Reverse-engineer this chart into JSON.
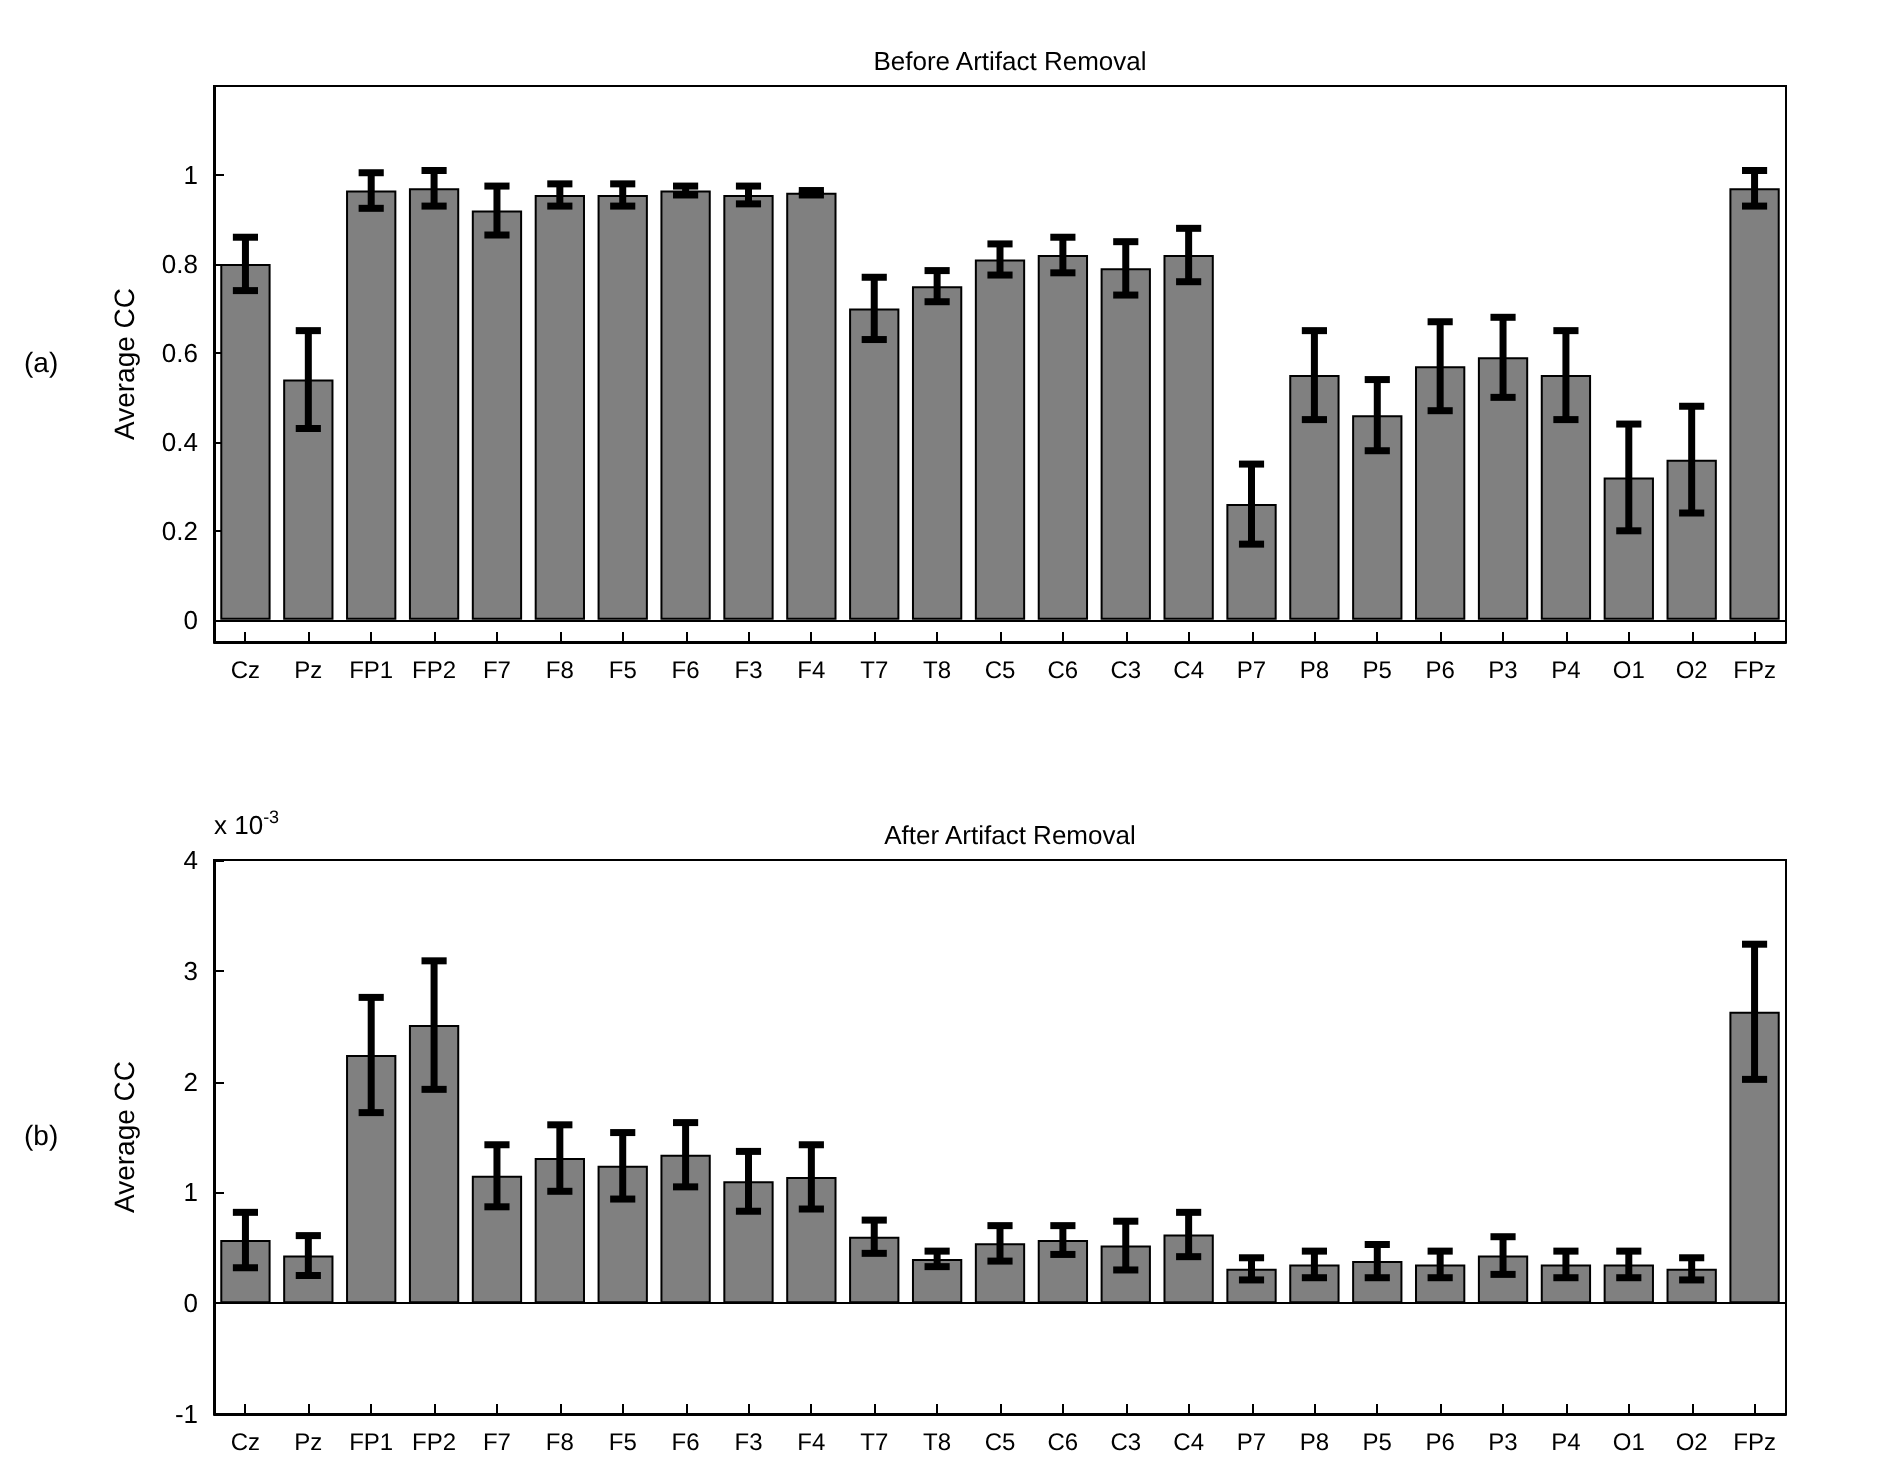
{
  "chart_data": [
    {
      "type": "bar",
      "title": "Before Artifact Removal",
      "ylabel": "Average CC",
      "annotations": [
        "(a)"
      ],
      "categories": [
        "Cz",
        "Pz",
        "FP1",
        "FP2",
        "F7",
        "F8",
        "F5",
        "F6",
        "F3",
        "F4",
        "T7",
        "T8",
        "C5",
        "C6",
        "C3",
        "C4",
        "P7",
        "P8",
        "P5",
        "P6",
        "P3",
        "P4",
        "O1",
        "O2",
        "FPz"
      ],
      "values": [
        0.8,
        0.54,
        0.965,
        0.97,
        0.92,
        0.955,
        0.955,
        0.965,
        0.955,
        0.96,
        0.7,
        0.75,
        0.81,
        0.82,
        0.79,
        0.82,
        0.26,
        0.55,
        0.46,
        0.57,
        0.59,
        0.55,
        0.32,
        0.36,
        0.97
      ],
      "errors": [
        0.06,
        0.11,
        0.04,
        0.04,
        0.055,
        0.025,
        0.025,
        0.01,
        0.02,
        0.005,
        0.07,
        0.035,
        0.035,
        0.04,
        0.06,
        0.06,
        0.09,
        0.1,
        0.08,
        0.1,
        0.09,
        0.1,
        0.12,
        0.12,
        0.04
      ],
      "color": "#808080",
      "ylim": [
        -0.05,
        1.2
      ],
      "yticks": [
        0,
        0.2,
        0.4,
        0.6,
        0.8,
        1
      ],
      "ref_lines": [
        {
          "axis": "y",
          "value": 0,
          "color": "#000000"
        }
      ],
      "grid": false
    },
    {
      "type": "bar",
      "title": "After Artifact Removal",
      "ylabel": "Average CC",
      "annotations": [
        "(b)",
        "x 10$^{-3}$"
      ],
      "categories": [
        "Cz",
        "Pz",
        "FP1",
        "FP2",
        "F7",
        "F8",
        "F5",
        "F6",
        "F3",
        "F4",
        "T7",
        "T8",
        "C5",
        "C6",
        "C3",
        "C4",
        "P7",
        "P8",
        "P5",
        "P6",
        "P3",
        "P4",
        "O1",
        "O2",
        "FPz"
      ],
      "values": [
        0.57,
        0.43,
        2.24,
        2.51,
        1.15,
        1.31,
        1.24,
        1.34,
        1.1,
        1.14,
        0.6,
        0.4,
        0.54,
        0.57,
        0.52,
        0.62,
        0.31,
        0.35,
        0.38,
        0.35,
        0.43,
        0.35,
        0.35,
        0.31,
        2.63
      ],
      "errors": [
        0.25,
        0.18,
        0.52,
        0.58,
        0.28,
        0.3,
        0.3,
        0.29,
        0.27,
        0.29,
        0.15,
        0.07,
        0.16,
        0.13,
        0.22,
        0.2,
        0.1,
        0.12,
        0.15,
        0.12,
        0.17,
        0.12,
        0.12,
        0.1,
        0.61
      ],
      "color": "#808080",
      "ylim": [
        -1,
        4
      ],
      "yticks": [
        -1,
        0,
        1,
        2,
        3,
        4
      ],
      "ref_lines": [
        {
          "axis": "y",
          "value": 0,
          "color": "#000000"
        }
      ],
      "grid": false
    }
  ]
}
